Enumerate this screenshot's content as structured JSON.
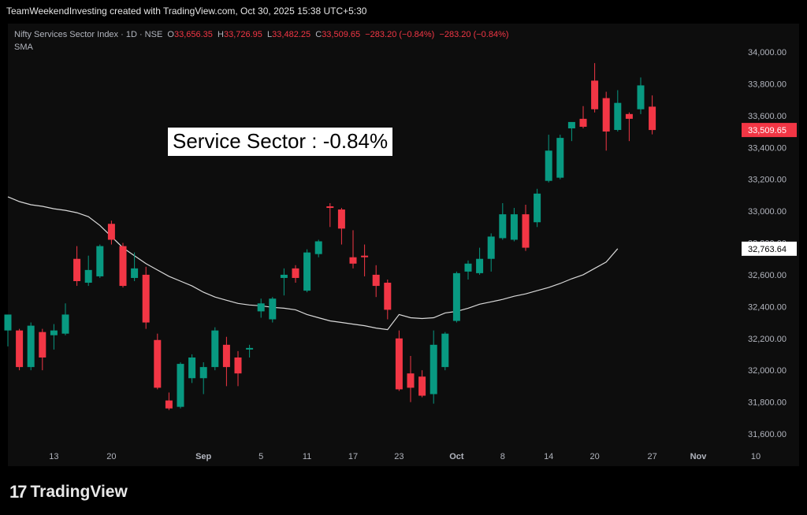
{
  "header": {
    "credit": "TeamWeekendInvesting created with TradingView.com, Oct 30, 2025 15:38 UTC+5:30"
  },
  "legend": {
    "symbol": "Nifty Services Sector Index · 1D · NSE",
    "o_label": "O",
    "o_value": "33,656.35",
    "h_label": "H",
    "h_value": "33,726.95",
    "l_label": "L",
    "l_value": "33,482.25",
    "c_label": "C",
    "c_value": "33,509.65",
    "change": "−283.20 (−0.84%)",
    "change2": "−283.20 (−0.84%)",
    "indicator": "SMA"
  },
  "annotation": {
    "text": "Service Sector : -0.84%"
  },
  "footer": {
    "brand": "TradingView",
    "logo_mark": "17"
  },
  "colors": {
    "up": "#089981",
    "down": "#f23645",
    "sma": "#d9d9d9",
    "bg": "#0d0d0d",
    "last_price_bg": "#f23645"
  },
  "chart_data": {
    "type": "candlestick",
    "title": "Nifty Services Sector Index · 1D · NSE",
    "ylim": [
      31500,
      34100
    ],
    "y_ticks": [
      "34,000.00",
      "33,800.00",
      "33,600.00",
      "33,400.00",
      "33,200.00",
      "33,000.00",
      "32,800.00",
      "32,600.00",
      "32,400.00",
      "32,200.00",
      "32,000.00",
      "31,800.00",
      "31,600.00"
    ],
    "y_tick_values": [
      34000,
      33800,
      33600,
      33400,
      33200,
      33000,
      32800,
      32600,
      32400,
      32200,
      32000,
      31800,
      31600
    ],
    "x_ticks": [
      {
        "label": "13",
        "i": 4
      },
      {
        "label": "20",
        "i": 9
      },
      {
        "label": "Sep",
        "i": 17
      },
      {
        "label": "5",
        "i": 22
      },
      {
        "label": "11",
        "i": 26
      },
      {
        "label": "17",
        "i": 30
      },
      {
        "label": "23",
        "i": 34
      },
      {
        "label": "Oct",
        "i": 39
      },
      {
        "label": "8",
        "i": 43
      },
      {
        "label": "14",
        "i": 47
      },
      {
        "label": "20",
        "i": 51
      },
      {
        "label": "27",
        "i": 56
      },
      {
        "label": "Nov",
        "i": 60
      },
      {
        "label": "10",
        "i": 65
      }
    ],
    "last_price": "33,509.65",
    "sma_last": "32,763.64",
    "candles": [
      {
        "o": 32250,
        "h": 32350,
        "l": 32150,
        "c": 32350
      },
      {
        "o": 32250,
        "h": 32260,
        "l": 32000,
        "c": 32020
      },
      {
        "o": 32020,
        "h": 32300,
        "l": 32000,
        "c": 32280
      },
      {
        "o": 32240,
        "h": 32260,
        "l": 32000,
        "c": 32080
      },
      {
        "o": 32220,
        "h": 32290,
        "l": 32130,
        "c": 32250
      },
      {
        "o": 32230,
        "h": 32420,
        "l": 32220,
        "c": 32350
      },
      {
        "o": 32700,
        "h": 32780,
        "l": 32530,
        "c": 32560
      },
      {
        "o": 32550,
        "h": 32720,
        "l": 32530,
        "c": 32630
      },
      {
        "o": 32590,
        "h": 32790,
        "l": 32580,
        "c": 32780
      },
      {
        "o": 32920,
        "h": 32940,
        "l": 32790,
        "c": 32820
      },
      {
        "o": 32780,
        "h": 32800,
        "l": 32520,
        "c": 32530
      },
      {
        "o": 32580,
        "h": 32740,
        "l": 32560,
        "c": 32640
      },
      {
        "o": 32600,
        "h": 32650,
        "l": 32260,
        "c": 32300
      },
      {
        "o": 32190,
        "h": 32230,
        "l": 31880,
        "c": 31890
      },
      {
        "o": 31810,
        "h": 31860,
        "l": 31750,
        "c": 31760
      },
      {
        "o": 31770,
        "h": 32050,
        "l": 31760,
        "c": 32040
      },
      {
        "o": 31950,
        "h": 32100,
        "l": 31920,
        "c": 32080
      },
      {
        "o": 31950,
        "h": 32050,
        "l": 31850,
        "c": 32020
      },
      {
        "o": 32020,
        "h": 32270,
        "l": 32000,
        "c": 32250
      },
      {
        "o": 32160,
        "h": 32210,
        "l": 31900,
        "c": 32020
      },
      {
        "o": 32080,
        "h": 32120,
        "l": 31900,
        "c": 31980
      },
      {
        "o": 32130,
        "h": 32160,
        "l": 32080,
        "c": 32140
      },
      {
        "o": 32370,
        "h": 32450,
        "l": 32330,
        "c": 32420
      },
      {
        "o": 32320,
        "h": 32460,
        "l": 32300,
        "c": 32450
      },
      {
        "o": 32580,
        "h": 32640,
        "l": 32470,
        "c": 32600
      },
      {
        "o": 32640,
        "h": 32660,
        "l": 32550,
        "c": 32580
      },
      {
        "o": 32500,
        "h": 32760,
        "l": 32490,
        "c": 32740
      },
      {
        "o": 32730,
        "h": 32820,
        "l": 32710,
        "c": 32810
      },
      {
        "o": 33030,
        "h": 33050,
        "l": 32900,
        "c": 33020
      },
      {
        "o": 33010,
        "h": 33020,
        "l": 32790,
        "c": 32890
      },
      {
        "o": 32710,
        "h": 32880,
        "l": 32640,
        "c": 32670
      },
      {
        "o": 32720,
        "h": 32790,
        "l": 32590,
        "c": 32710
      },
      {
        "o": 32600,
        "h": 32660,
        "l": 32460,
        "c": 32530
      },
      {
        "o": 32550,
        "h": 32570,
        "l": 32320,
        "c": 32380
      },
      {
        "o": 32200,
        "h": 32250,
        "l": 31870,
        "c": 31880
      },
      {
        "o": 31980,
        "h": 32090,
        "l": 31800,
        "c": 31890
      },
      {
        "o": 31960,
        "h": 32000,
        "l": 31830,
        "c": 31840
      },
      {
        "o": 31850,
        "h": 32250,
        "l": 31790,
        "c": 32160
      },
      {
        "o": 32020,
        "h": 32240,
        "l": 32000,
        "c": 32230
      },
      {
        "o": 32310,
        "h": 32620,
        "l": 32300,
        "c": 32610
      },
      {
        "o": 32620,
        "h": 32690,
        "l": 32570,
        "c": 32670
      },
      {
        "o": 32610,
        "h": 32770,
        "l": 32600,
        "c": 32700
      },
      {
        "o": 32700,
        "h": 32860,
        "l": 32620,
        "c": 32840
      },
      {
        "o": 32830,
        "h": 33050,
        "l": 32820,
        "c": 32980
      },
      {
        "o": 32820,
        "h": 33020,
        "l": 32810,
        "c": 32980
      },
      {
        "o": 32980,
        "h": 33040,
        "l": 32750,
        "c": 32770
      },
      {
        "o": 32930,
        "h": 33140,
        "l": 32900,
        "c": 33110
      },
      {
        "o": 33190,
        "h": 33480,
        "l": 33180,
        "c": 33380
      },
      {
        "o": 33210,
        "h": 33480,
        "l": 33200,
        "c": 33460
      },
      {
        "o": 33520,
        "h": 33550,
        "l": 33440,
        "c": 33560
      },
      {
        "o": 33580,
        "h": 33660,
        "l": 33520,
        "c": 33530
      },
      {
        "o": 33820,
        "h": 33930,
        "l": 33620,
        "c": 33640
      },
      {
        "o": 33710,
        "h": 33750,
        "l": 33380,
        "c": 33500
      },
      {
        "o": 33510,
        "h": 33760,
        "l": 33500,
        "c": 33680
      },
      {
        "o": 33610,
        "h": 33620,
        "l": 33440,
        "c": 33580
      },
      {
        "o": 33640,
        "h": 33840,
        "l": 33610,
        "c": 33790
      },
      {
        "o": 33656.35,
        "h": 33726.95,
        "l": 33482.25,
        "c": 33509.65
      }
    ],
    "sma": [
      33090,
      33060,
      33040,
      33030,
      33015,
      33005,
      32990,
      32965,
      32910,
      32840,
      32770,
      32720,
      32670,
      32630,
      32590,
      32560,
      32530,
      32490,
      32460,
      32440,
      32420,
      32410,
      32405,
      32395,
      32390,
      32380,
      32350,
      32330,
      32310,
      32300,
      32290,
      32280,
      32265,
      32255,
      32350,
      32330,
      32325,
      32330,
      32360,
      32370,
      32390,
      32415,
      32430,
      32445,
      32465,
      32480,
      32500,
      32520,
      32545,
      32575,
      32600,
      32640,
      32680,
      32763.64
    ]
  }
}
